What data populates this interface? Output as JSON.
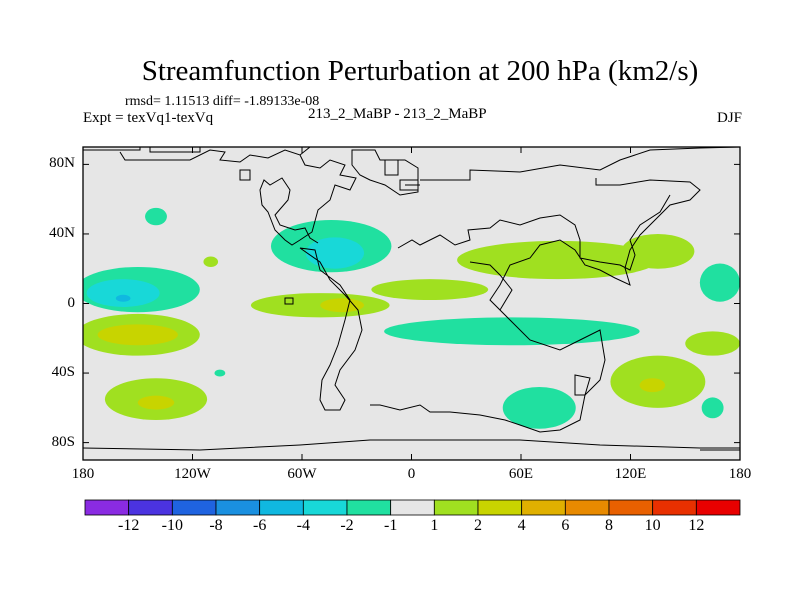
{
  "chart_data": {
    "type": "heatmap",
    "title": "Streamfunction Perturbation at 200 hPa (km2/s)",
    "stats": "rmsd= 1.11513 diff= -1.89133e-08",
    "left_string": "Expt = texVq1-texVq",
    "center_string": "213_2_MaBP - 213_2_MaBP",
    "right_string": "DJF",
    "xlim": [
      -180,
      180
    ],
    "ylim": [
      -90,
      90
    ],
    "x_ticks": [
      {
        "value": -180,
        "label": "180"
      },
      {
        "value": -120,
        "label": "120W"
      },
      {
        "value": -60,
        "label": "60W"
      },
      {
        "value": 0,
        "label": "0"
      },
      {
        "value": 60,
        "label": "60E"
      },
      {
        "value": 120,
        "label": "120E"
      },
      {
        "value": 180,
        "label": "180"
      }
    ],
    "y_ticks": [
      {
        "value": 80,
        "label": "80N"
      },
      {
        "value": 40,
        "label": "40N"
      },
      {
        "value": 0,
        "label": "0"
      },
      {
        "value": -40,
        "label": "40S"
      },
      {
        "value": -80,
        "label": "80S"
      }
    ],
    "colorbar": {
      "colors": [
        "#8a2be2",
        "#4b33e0",
        "#1f63e0",
        "#1a90e0",
        "#10b8e0",
        "#18d8d8",
        "#20e0a0",
        "#e6e6e6",
        "#a0e020",
        "#c8d400",
        "#e0b000",
        "#e88a00",
        "#e86000",
        "#e83000",
        "#e80000"
      ],
      "labels": [
        "-12",
        "-10",
        "-8",
        "-6",
        "-4",
        "-2",
        "-1",
        "1",
        "2",
        "4",
        "6",
        "8",
        "10",
        "12"
      ]
    },
    "regions": [
      {
        "level": "-1",
        "lon": -150,
        "lat": 8,
        "rlon": 34,
        "rlat": 13
      },
      {
        "level": "-2",
        "lon": -158,
        "lat": 6,
        "rlon": 20,
        "rlat": 8
      },
      {
        "level": "-4",
        "lon": -158,
        "lat": 3,
        "rlon": 4,
        "rlat": 2
      },
      {
        "level": "-1",
        "lon": -140,
        "lat": 50,
        "rlon": 6,
        "rlat": 5
      },
      {
        "level": "-1",
        "lon": -44,
        "lat": 33,
        "rlon": 33,
        "rlat": 15
      },
      {
        "level": "-2",
        "lon": -42,
        "lat": 29,
        "rlon": 16,
        "rlat": 9
      },
      {
        "level": "-1",
        "lon": 55,
        "lat": -16,
        "rlon": 70,
        "rlat": 8
      },
      {
        "level": "-1",
        "lon": 70,
        "lat": -60,
        "rlon": 20,
        "rlat": 12
      },
      {
        "level": "-1",
        "lon": 169,
        "lat": 12,
        "rlon": 11,
        "rlat": 11
      },
      {
        "level": "-1",
        "lon": 165,
        "lat": -60,
        "rlon": 6,
        "rlat": 6
      },
      {
        "level": "-1",
        "lon": -105,
        "lat": -40,
        "rlon": 3,
        "rlat": 2
      },
      {
        "level": "2",
        "lon": -150,
        "lat": -18,
        "rlon": 34,
        "rlat": 12
      },
      {
        "level": "4",
        "lon": -150,
        "lat": -18,
        "rlon": 22,
        "rlat": 6
      },
      {
        "level": "2",
        "lon": -140,
        "lat": -55,
        "rlon": 28,
        "rlat": 12
      },
      {
        "level": "4",
        "lon": -140,
        "lat": -57,
        "rlon": 10,
        "rlat": 4
      },
      {
        "level": "2",
        "lon": -110,
        "lat": 24,
        "rlon": 4,
        "rlat": 3
      },
      {
        "level": "2",
        "lon": -50,
        "lat": -1,
        "rlon": 38,
        "rlat": 7
      },
      {
        "level": "4",
        "lon": -38,
        "lat": -1,
        "rlon": 12,
        "rlat": 4
      },
      {
        "level": "2",
        "lon": 10,
        "lat": 8,
        "rlon": 32,
        "rlat": 6
      },
      {
        "level": "2",
        "lon": 80,
        "lat": 25,
        "rlon": 55,
        "rlat": 11
      },
      {
        "level": "2",
        "lon": 135,
        "lat": 30,
        "rlon": 20,
        "rlat": 10
      },
      {
        "level": "2",
        "lon": 135,
        "lat": -45,
        "rlon": 26,
        "rlat": 15
      },
      {
        "level": "4",
        "lon": 132,
        "lat": -47,
        "rlon": 7,
        "rlat": 4
      },
      {
        "level": "2",
        "lon": 165,
        "lat": -23,
        "rlon": 15,
        "rlat": 7
      }
    ]
  }
}
